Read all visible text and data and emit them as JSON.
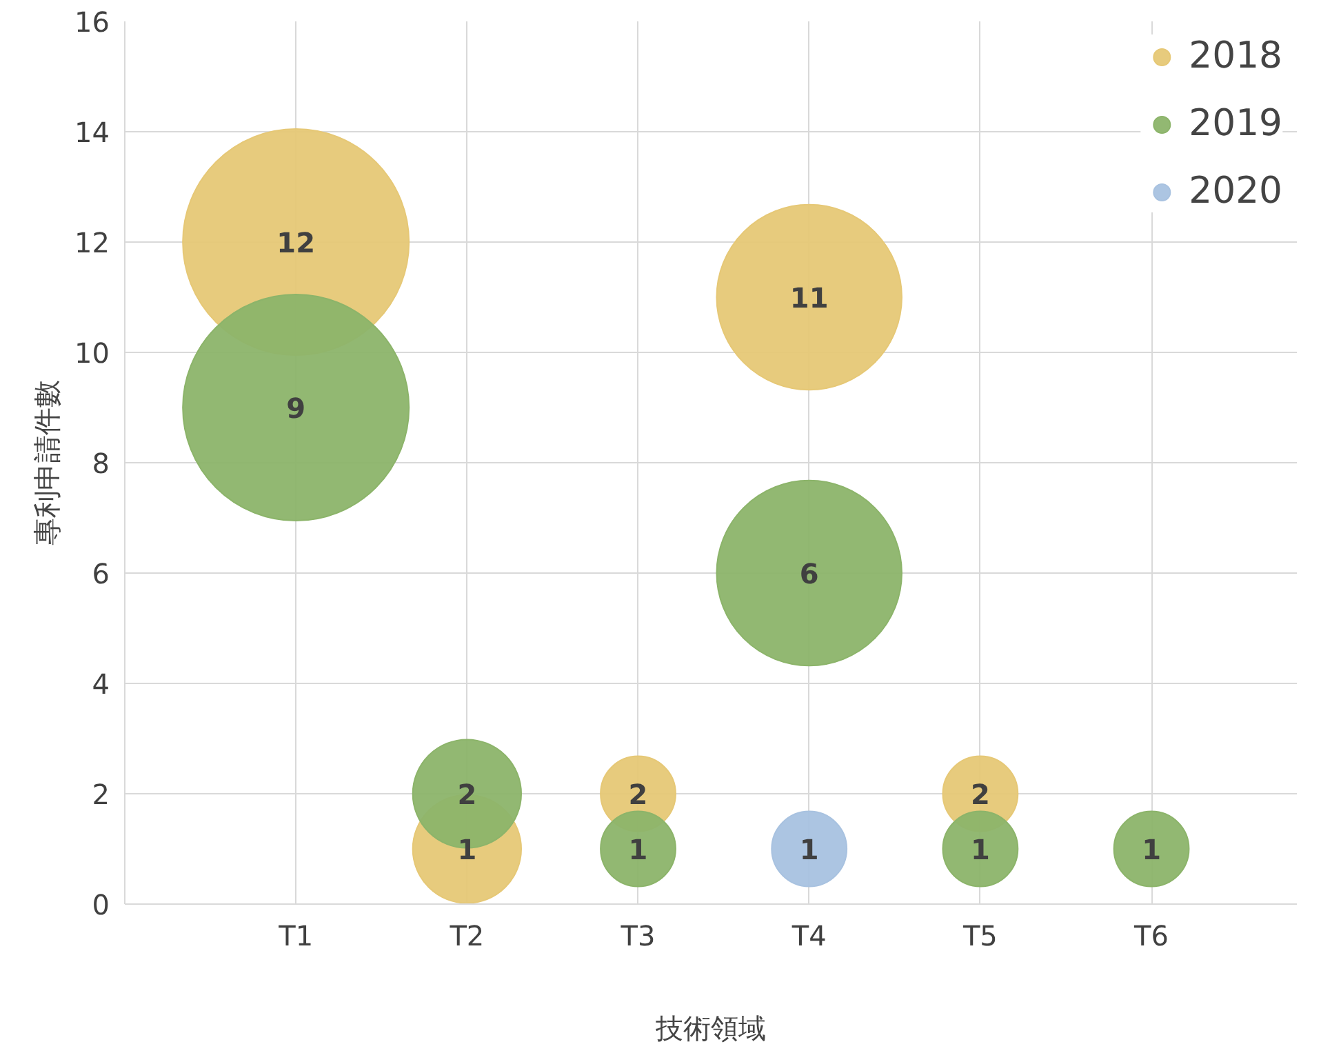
{
  "chart_data": {
    "type": "bubble",
    "xlabel": "技術領域",
    "ylabel": "專利申請件數",
    "categories": [
      "T1",
      "T2",
      "T3",
      "T4",
      "T5",
      "T6"
    ],
    "series": [
      {
        "name": "2018",
        "color": "#e6c876",
        "values": [
          12,
          1,
          2,
          11,
          2,
          null
        ],
        "sizes": [
          1,
          0.23,
          0.11,
          0.67,
          0.11,
          null
        ]
      },
      {
        "name": "2019",
        "color": "#8cb46a",
        "values": [
          9,
          2,
          1,
          6,
          1,
          1
        ],
        "sizes": [
          1,
          0.23,
          0.11,
          0.67,
          0.11,
          0.11
        ]
      },
      {
        "name": "2020",
        "color": "#a8c2e0",
        "values": [
          null,
          null,
          null,
          1,
          null,
          null
        ],
        "sizes": [
          null,
          null,
          null,
          0.11,
          null,
          null
        ]
      }
    ],
    "ylim": [
      0,
      16
    ],
    "yticks": [
      0,
      2,
      4,
      6,
      8,
      10,
      12,
      14,
      16
    ],
    "grid": true,
    "legend": "top right",
    "data_labels": true
  }
}
